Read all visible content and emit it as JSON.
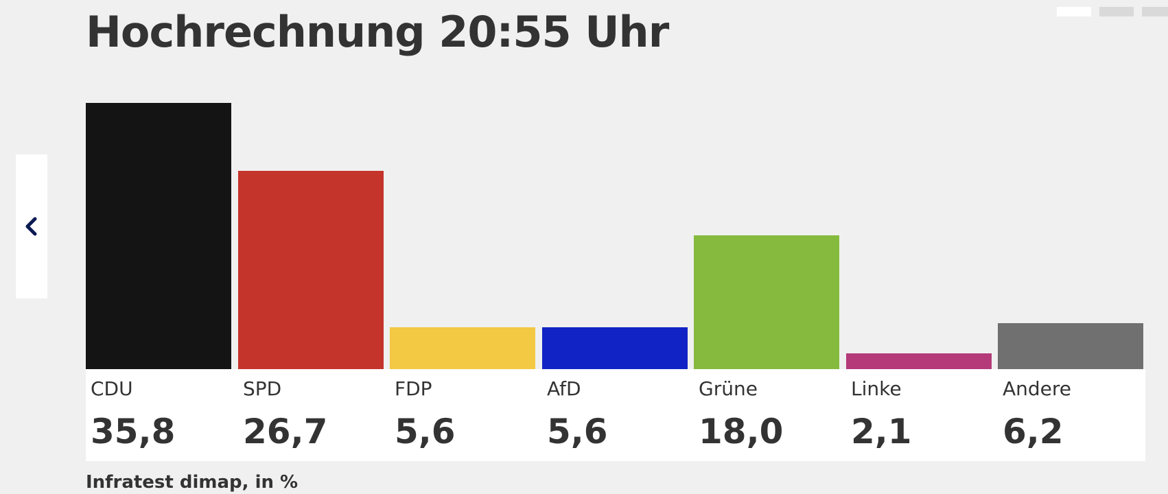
{
  "title": "Hochrechnung 20:55 Uhr",
  "source_note": "Infratest dimap, in %",
  "nav": {
    "prev_icon": "chevron-left-icon",
    "pager_count": 3,
    "active_page": 1
  },
  "chart_data": {
    "type": "bar",
    "title": "Hochrechnung 20:55 Uhr",
    "categories": [
      "CDU",
      "SPD",
      "FDP",
      "AfD",
      "Grüne",
      "Linke",
      "Andere"
    ],
    "values": [
      35.8,
      26.7,
      5.6,
      5.6,
      18.0,
      2.1,
      6.2
    ],
    "value_labels": [
      "35,8",
      "26,7",
      "5,6",
      "5,6",
      "18,0",
      "2,1",
      "6,2"
    ],
    "colors": [
      "#141414",
      "#c5342b",
      "#f3c843",
      "#1123c4",
      "#86ba3e",
      "#b43a7a",
      "#707070"
    ],
    "ylim": [
      0,
      35.8
    ],
    "unit": "%",
    "grid": false
  }
}
